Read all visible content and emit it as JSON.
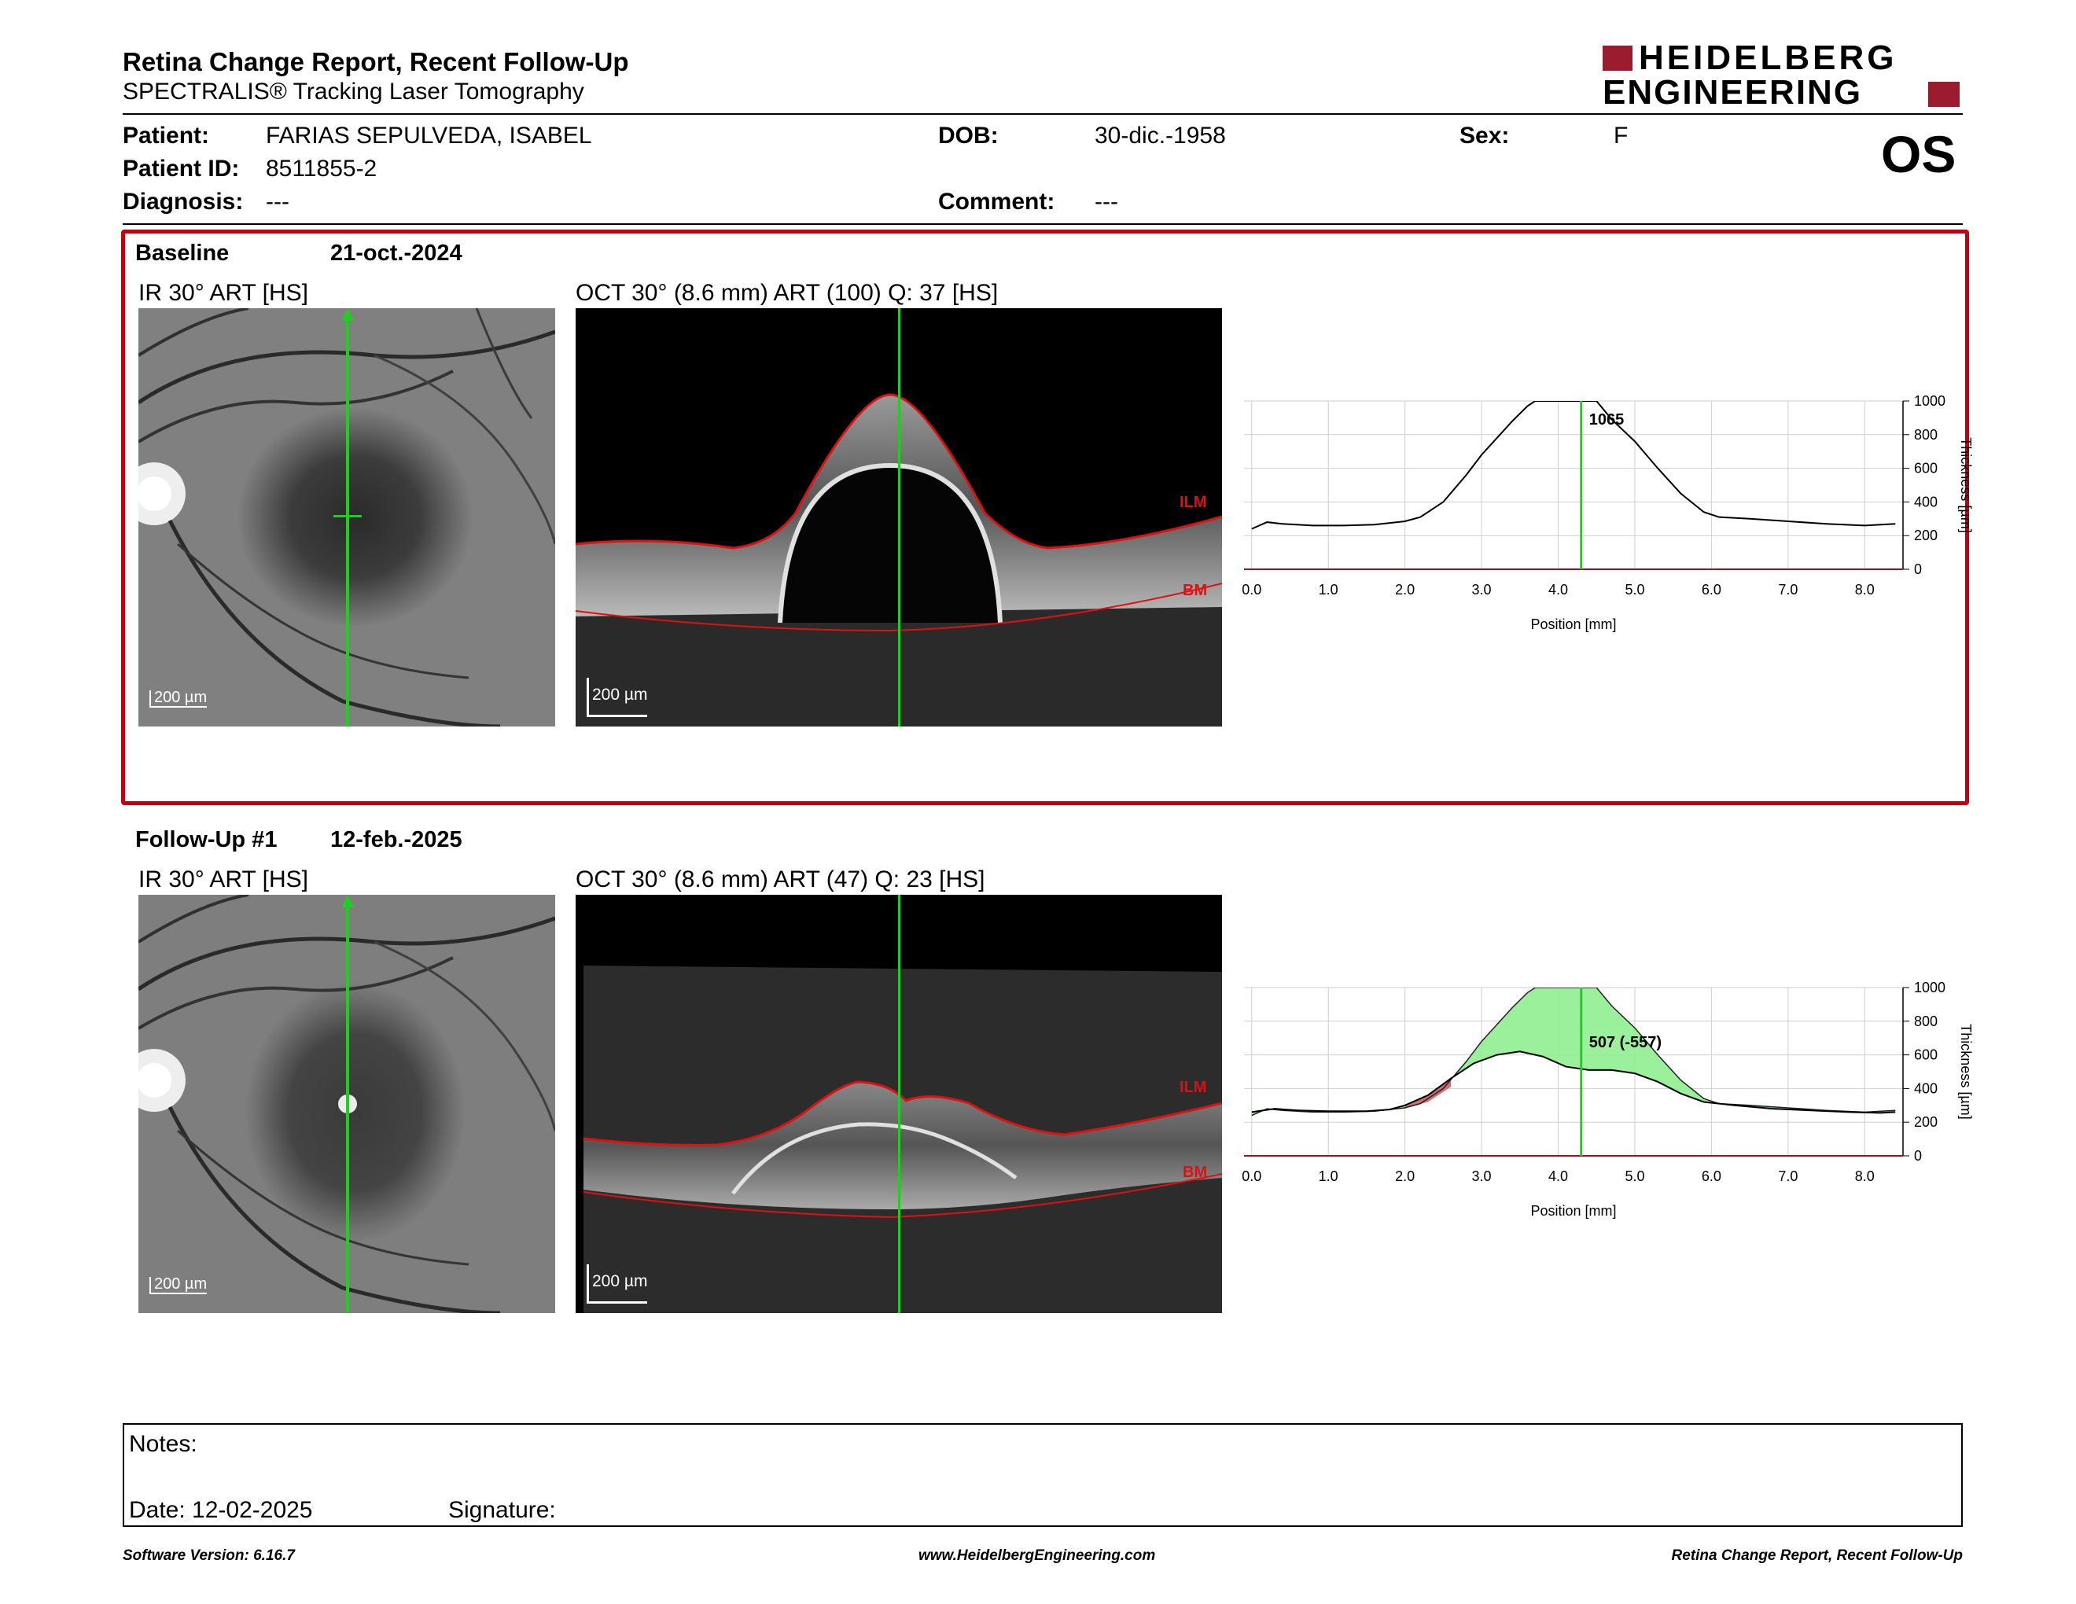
{
  "header": {
    "title": "Retina Change Report, Recent Follow-Up",
    "subtitle": "SPECTRALIS® Tracking Laser Tomography",
    "logo_line1": "HEIDELBERG",
    "logo_line2": "ENGINEERING",
    "eye": "OS"
  },
  "patient": {
    "patient_label": "Patient:",
    "patient_value": "FARIAS SEPULVEDA, ISABEL",
    "dob_label": "DOB:",
    "dob_value": "30-dic.-1958",
    "sex_label": "Sex:",
    "sex_value": "F",
    "id_label": "Patient ID:",
    "id_value": "8511855-2",
    "diagnosis_label": "Diagnosis:",
    "diagnosis_value": "---",
    "comment_label": "Comment:",
    "comment_value": "---"
  },
  "baseline": {
    "label": "Baseline",
    "date": "21-oct.-2024",
    "ir_caption": "IR 30° ART [HS]",
    "oct_caption": "OCT 30° (8.6 mm) ART (100) Q: 37 [HS]",
    "scale": "200 µm",
    "ilm": "ILM",
    "bm": "BM"
  },
  "followup": {
    "label": "Follow-Up #1",
    "date": "12-feb.-2025",
    "ir_caption": "IR 30° ART [HS]",
    "oct_caption": "OCT 30° (8.6 mm) ART (47) Q: 23 [HS]",
    "scale": "200 µm",
    "ilm": "ILM",
    "bm": "BM"
  },
  "chart_data": [
    {
      "type": "line",
      "xlabel": "Position [mm]",
      "ylabel": "Thickness [µm]",
      "xlim": [
        -0.1,
        8.5
      ],
      "ylim": [
        0,
        1000
      ],
      "x_ticks": [
        "0.0",
        "1.0",
        "2.0",
        "3.0",
        "4.0",
        "5.0",
        "6.0",
        "7.0",
        "8.0"
      ],
      "y_ticks": [
        "0",
        "200",
        "400",
        "600",
        "800",
        "1000"
      ],
      "cursor_x": 4.3,
      "cursor_label": "1065",
      "grid": true,
      "series": [
        {
          "x": [
            0,
            0.2,
            0.4,
            0.8,
            1.2,
            1.6,
            2.0,
            2.2,
            2.5,
            2.8,
            3.0,
            3.2,
            3.4,
            3.6,
            3.7,
            4.5,
            4.7,
            5.0,
            5.3,
            5.6,
            5.9,
            6.1,
            6.5,
            7.0,
            7.5,
            8.0,
            8.4
          ],
          "y": [
            240,
            280,
            270,
            260,
            260,
            265,
            285,
            310,
            400,
            560,
            680,
            780,
            880,
            970,
            1000,
            1000,
            890,
            760,
            600,
            450,
            340,
            310,
            300,
            285,
            270,
            260,
            270
          ]
        }
      ]
    },
    {
      "type": "area",
      "xlabel": "Position [mm]",
      "ylabel": "Thickness [µm]",
      "xlim": [
        -0.1,
        8.5
      ],
      "ylim": [
        0,
        1000
      ],
      "x_ticks": [
        "0.0",
        "1.0",
        "2.0",
        "3.0",
        "4.0",
        "5.0",
        "6.0",
        "7.0",
        "8.0"
      ],
      "y_ticks": [
        "0",
        "200",
        "400",
        "600",
        "800",
        "1000"
      ],
      "cursor_x": 4.3,
      "cursor_label": "507 (-557)",
      "grid": true,
      "series": [
        {
          "x": [
            0,
            0.3,
            0.6,
            1.0,
            1.5,
            1.8,
            2.0,
            2.3,
            2.6,
            2.9,
            3.2,
            3.5,
            3.8,
            4.1,
            4.4,
            4.7,
            5.0,
            5.3,
            5.6,
            5.9,
            6.3,
            6.8,
            7.3,
            7.8,
            8.2,
            8.4
          ],
          "y": [
            260,
            280,
            270,
            265,
            265,
            275,
            300,
            360,
            460,
            550,
            600,
            620,
            590,
            530,
            510,
            510,
            490,
            440,
            370,
            320,
            300,
            280,
            270,
            260,
            255,
            260
          ]
        },
        {
          "x": [
            0,
            0.2,
            0.4,
            0.8,
            1.2,
            1.6,
            2.0,
            2.2,
            2.5,
            2.8,
            3.0,
            3.2,
            3.4,
            3.6,
            3.7,
            4.5,
            4.7,
            5.0,
            5.3,
            5.6,
            5.9,
            6.1,
            6.5,
            7.0,
            7.5,
            8.0,
            8.4
          ],
          "y": [
            240,
            280,
            270,
            260,
            260,
            265,
            285,
            310,
            400,
            560,
            680,
            780,
            880,
            970,
            1000,
            1000,
            890,
            760,
            600,
            450,
            340,
            310,
            300,
            285,
            270,
            260,
            270
          ]
        }
      ]
    }
  ],
  "notes": {
    "notes_label": "Notes:",
    "date_label": "Date: 12-02-2025",
    "signature_label": "Signature:"
  },
  "footer": {
    "left": "Software Version: 6.16.7",
    "center": "www.HeidelbergEngineering.com",
    "right": "Retina Change Report, Recent Follow-Up"
  },
  "colors": {
    "brand": "#9b1b2f",
    "cursor": "#22cc22",
    "ilm": "#e01010",
    "highlight_box": "#c00010",
    "increase_fill": "#90ee90",
    "decrease_fill": "#d07070"
  }
}
